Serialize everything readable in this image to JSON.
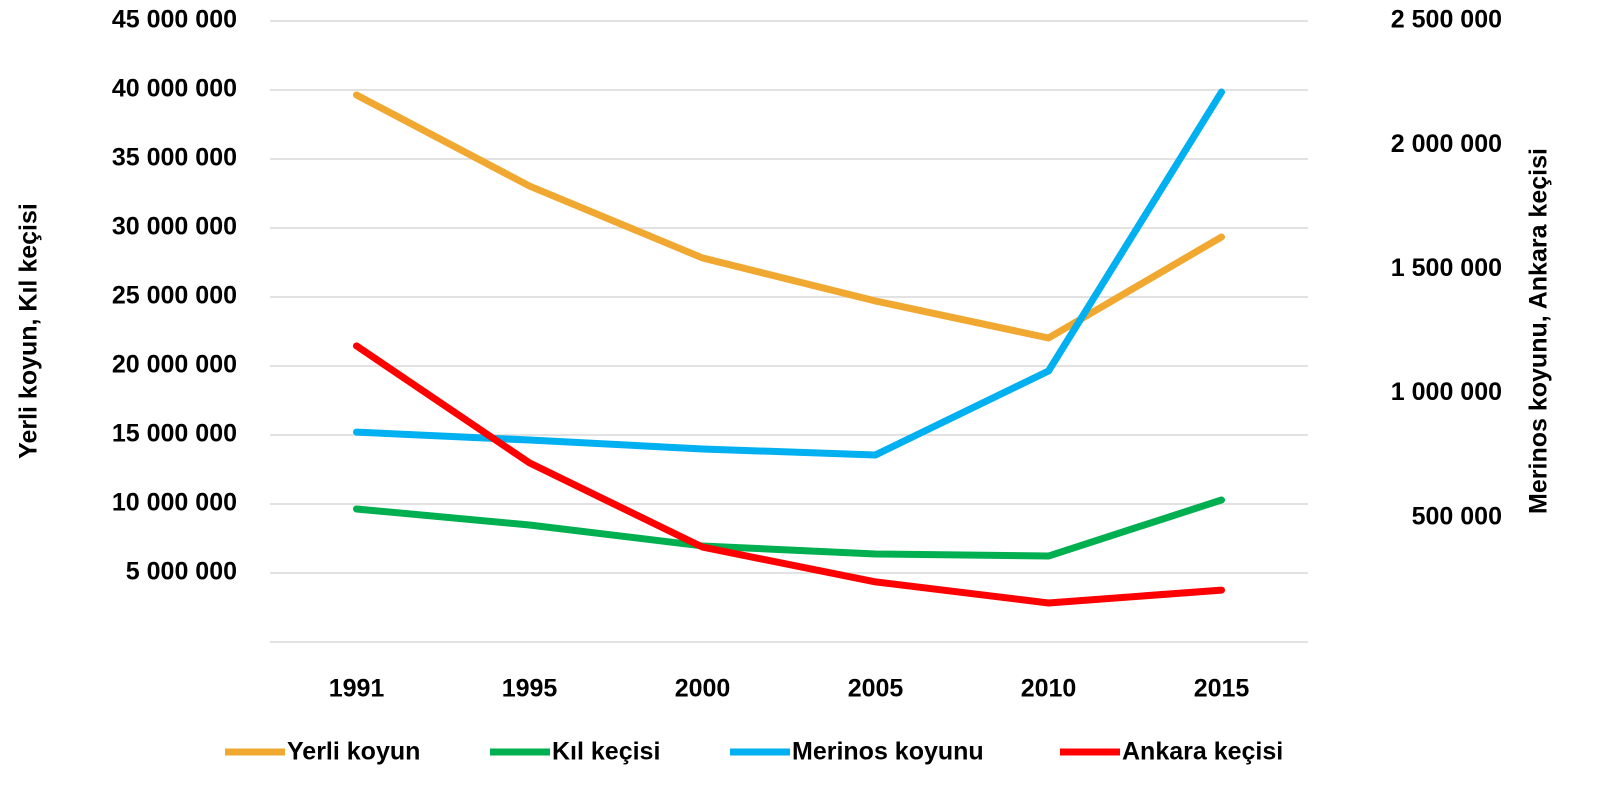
{
  "chart_data": {
    "type": "line",
    "y_label": "Yerli koyun, Kıl keçisi",
    "y2_label": "Merinos koyunu, Ankara keçisi",
    "categories": [
      "1991",
      "1995",
      "2000",
      "2005",
      "2010",
      "2015"
    ],
    "ylim": [
      0,
      45000000
    ],
    "yticks": [
      {
        "value": 5000000,
        "label": "5 000 000"
      },
      {
        "value": 10000000,
        "label": "10 000 000"
      },
      {
        "value": 15000000,
        "label": "15 000 000"
      },
      {
        "value": 20000000,
        "label": "20 000 000"
      },
      {
        "value": 25000000,
        "label": "25 000 000"
      },
      {
        "value": 30000000,
        "label": "30 000 000"
      },
      {
        "value": 35000000,
        "label": "35 000 000"
      },
      {
        "value": 40000000,
        "label": "40 000 000"
      },
      {
        "value": 45000000,
        "label": "45 000 000"
      }
    ],
    "y2lim": [
      0,
      2500000
    ],
    "y2ticks": [
      {
        "value": 500000,
        "label": "500 000"
      },
      {
        "value": 1000000,
        "label": "1 000 000"
      },
      {
        "value": 1500000,
        "label": "1 500 000"
      },
      {
        "value": 2000000,
        "label": "2 000 000"
      },
      {
        "value": 2500000,
        "label": "2 500 000"
      }
    ],
    "grid": true,
    "legend": "bottom",
    "series": [
      {
        "name": "Yerli koyun",
        "color": "#f0a830",
        "values": [
          39640000,
          33040000,
          27830000,
          24710000,
          22030000,
          29350000
        ]
      },
      {
        "name": "Kıl keçisi",
        "color": "#00b050",
        "values": [
          9640000,
          8480000,
          6960000,
          6380000,
          6230000,
          10290000
        ]
      },
      {
        "name": "Merinos koyunu",
        "color": "#00b0f0",
        "axis": "y2",
        "values": [
          845000,
          813000,
          777000,
          753000,
          1091000,
          2214000
        ]
      },
      {
        "name": "Ankara keçisi",
        "color": "#ff0000",
        "axis": "y2",
        "values": [
          1192000,
          721000,
          382000,
          242000,
          157000,
          209000
        ]
      }
    ]
  }
}
